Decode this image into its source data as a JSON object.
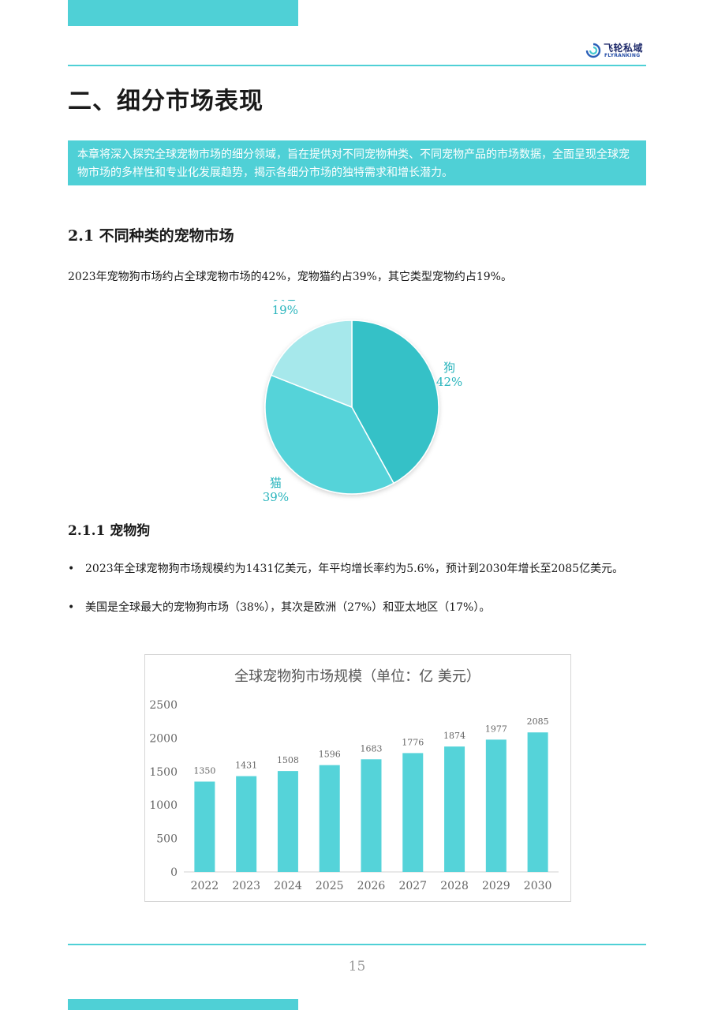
{
  "header": {
    "logo_cn": "飞轮私域",
    "logo_en": "FLYRANKING"
  },
  "section": {
    "title": "二、细分市场表现",
    "intro": "本章将深入探究全球宠物市场的细分领域，旨在提供对不同宠物种类、不同宠物产品的市场数据，全面呈现全球宠物市场的多样性和专业化发展趋势，揭示各细分市场的独特需求和增长潜力。"
  },
  "subsection": {
    "title": "2.1 不同种类的宠物市场",
    "paragraph": "2023年宠物狗市场约占全球宠物市场的42%，宠物猫约占39%，其它类型宠物约占19%。"
  },
  "subsubsection": {
    "title": "2.1.1 宠物狗",
    "bullets": [
      "2023年全球宠物狗市场规模约为1431亿美元，年平均增长率约为5.6%，预计到2030年增长至2085亿美元。",
      "美国是全球最大的宠物狗市场（38%），其次是欧洲（27%）和亚太地区（17%）。"
    ],
    "bullet_symbol": "•"
  },
  "page_number": "15",
  "colors": {
    "accent": "#4fd0d6",
    "pie_dog": "#36c1c7",
    "pie_cat": "#55d3d9",
    "pie_other": "#a6e8eb",
    "bar": "#55d3d9",
    "pie_label": "#2ab5bd"
  },
  "chart_data": [
    {
      "type": "pie",
      "labels": [
        "狗",
        "猫",
        "其它"
      ],
      "values": [
        42,
        39,
        19
      ],
      "value_labels": [
        "42%",
        "39%",
        "19%"
      ],
      "colors": [
        "#36c1c7",
        "#55d3d9",
        "#a6e8eb"
      ]
    },
    {
      "type": "bar",
      "title": "全球宠物狗市场规模（单位：亿 美元）",
      "categories": [
        "2022",
        "2023",
        "2024",
        "2025",
        "2026",
        "2027",
        "2028",
        "2029",
        "2030"
      ],
      "values": [
        1350,
        1431,
        1508,
        1596,
        1683,
        1776,
        1874,
        1977,
        2085
      ],
      "ylim": [
        0,
        2500
      ],
      "yticks": [
        0,
        500,
        1000,
        1500,
        2000,
        2500
      ],
      "ytick_labels": [
        "0",
        "500",
        "1000",
        "1500",
        "2000",
        "2500"
      ],
      "grid": false,
      "data_labels": true
    }
  ]
}
